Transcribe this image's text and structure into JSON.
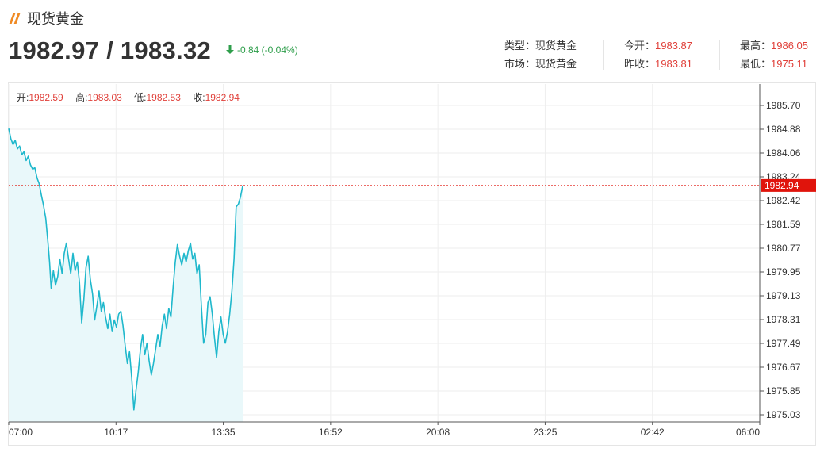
{
  "header": {
    "title": "现货黄金",
    "price": "1982.97 / 1983.32",
    "change": "-0.84 (-0.04%)"
  },
  "info": {
    "type_label": "类型：",
    "type_value": "现货黄金",
    "market_label": "市场：",
    "market_value": "现货黄金",
    "open_label": "今开：",
    "open_value": "1983.87",
    "prev_close_label": "昨收：",
    "prev_close_value": "1983.81",
    "high_label": "最高：",
    "high_value": "1986.05",
    "low_label": "最低：",
    "low_value": "1975.11"
  },
  "ohlc": {
    "open_label": "开:",
    "open_value": "1982.59",
    "high_label": "高:",
    "high_value": "1983.03",
    "low_label": "低:",
    "low_value": "1982.53",
    "close_label": "收:",
    "close_value": "1982.94"
  },
  "colors": {
    "line": "#1fb8cc",
    "area": "#e9f8fa",
    "last_price": "#e0140c",
    "down": "#2e9e4b",
    "accent_red": "#e0403a"
  },
  "chart_data": {
    "type": "line",
    "y_ticks": [
      "1985.70",
      "1984.88",
      "1984.06",
      "1983.24",
      "1982.42",
      "1981.59",
      "1980.77",
      "1979.95",
      "1979.13",
      "1978.31",
      "1977.49",
      "1976.67",
      "1975.85",
      "1975.03"
    ],
    "ylim": [
      1974.8,
      1986.2
    ],
    "x_ticks": [
      "07:00",
      "10:17",
      "13:35",
      "16:52",
      "20:08",
      "23:25",
      "02:42",
      "06:00"
    ],
    "x_range_minutes": [
      0,
      1380
    ],
    "last_price_label": "1982.94",
    "grid": true,
    "series": [
      {
        "values": [
          [
            0,
            1984.9
          ],
          [
            4,
            1984.55
          ],
          [
            8,
            1984.35
          ],
          [
            12,
            1984.5
          ],
          [
            16,
            1984.2
          ],
          [
            20,
            1984.3
          ],
          [
            24,
            1984.0
          ],
          [
            28,
            1984.1
          ],
          [
            32,
            1983.8
          ],
          [
            36,
            1983.95
          ],
          [
            40,
            1983.65
          ],
          [
            44,
            1983.5
          ],
          [
            48,
            1983.55
          ],
          [
            52,
            1983.2
          ],
          [
            56,
            1983.0
          ],
          [
            60,
            1982.6
          ],
          [
            64,
            1982.25
          ],
          [
            68,
            1981.8
          ],
          [
            72,
            1981.0
          ],
          [
            75,
            1980.3
          ],
          [
            78,
            1979.4
          ],
          [
            82,
            1980.0
          ],
          [
            86,
            1979.5
          ],
          [
            90,
            1979.8
          ],
          [
            94,
            1980.4
          ],
          [
            98,
            1979.9
          ],
          [
            102,
            1980.6
          ],
          [
            106,
            1980.95
          ],
          [
            110,
            1980.4
          ],
          [
            114,
            1979.9
          ],
          [
            118,
            1980.6
          ],
          [
            122,
            1980.0
          ],
          [
            126,
            1980.3
          ],
          [
            130,
            1979.6
          ],
          [
            134,
            1978.2
          ],
          [
            138,
            1979.0
          ],
          [
            142,
            1980.1
          ],
          [
            146,
            1980.5
          ],
          [
            150,
            1979.7
          ],
          [
            154,
            1979.2
          ],
          [
            158,
            1978.3
          ],
          [
            162,
            1978.8
          ],
          [
            166,
            1979.3
          ],
          [
            170,
            1978.6
          ],
          [
            174,
            1978.9
          ],
          [
            178,
            1978.4
          ],
          [
            182,
            1978.0
          ],
          [
            186,
            1978.5
          ],
          [
            190,
            1977.9
          ],
          [
            194,
            1978.3
          ],
          [
            198,
            1978.05
          ],
          [
            202,
            1978.5
          ],
          [
            206,
            1978.6
          ],
          [
            210,
            1978.1
          ],
          [
            214,
            1977.4
          ],
          [
            218,
            1976.8
          ],
          [
            222,
            1977.2
          ],
          [
            226,
            1976.3
          ],
          [
            230,
            1975.2
          ],
          [
            234,
            1975.9
          ],
          [
            238,
            1976.5
          ],
          [
            242,
            1977.3
          ],
          [
            246,
            1977.8
          ],
          [
            250,
            1977.1
          ],
          [
            254,
            1977.5
          ],
          [
            258,
            1976.9
          ],
          [
            262,
            1976.4
          ],
          [
            266,
            1976.8
          ],
          [
            270,
            1977.3
          ],
          [
            274,
            1977.8
          ],
          [
            278,
            1977.4
          ],
          [
            282,
            1978.1
          ],
          [
            286,
            1978.5
          ],
          [
            290,
            1978.0
          ],
          [
            294,
            1978.7
          ],
          [
            298,
            1978.4
          ],
          [
            302,
            1979.4
          ],
          [
            306,
            1980.3
          ],
          [
            310,
            1980.9
          ],
          [
            314,
            1980.5
          ],
          [
            318,
            1980.2
          ],
          [
            322,
            1980.6
          ],
          [
            326,
            1980.3
          ],
          [
            330,
            1980.7
          ],
          [
            334,
            1980.95
          ],
          [
            338,
            1980.4
          ],
          [
            342,
            1980.6
          ],
          [
            346,
            1979.9
          ],
          [
            350,
            1980.2
          ],
          [
            354,
            1978.8
          ],
          [
            358,
            1977.5
          ],
          [
            362,
            1977.8
          ],
          [
            366,
            1978.9
          ],
          [
            370,
            1979.1
          ],
          [
            374,
            1978.5
          ],
          [
            378,
            1977.7
          ],
          [
            382,
            1977.0
          ],
          [
            386,
            1977.9
          ],
          [
            390,
            1978.4
          ],
          [
            394,
            1977.8
          ],
          [
            398,
            1977.5
          ],
          [
            402,
            1977.9
          ],
          [
            406,
            1978.5
          ],
          [
            410,
            1979.3
          ],
          [
            414,
            1980.4
          ],
          [
            418,
            1982.2
          ],
          [
            422,
            1982.3
          ],
          [
            426,
            1982.55
          ],
          [
            430,
            1982.94
          ]
        ]
      }
    ]
  }
}
